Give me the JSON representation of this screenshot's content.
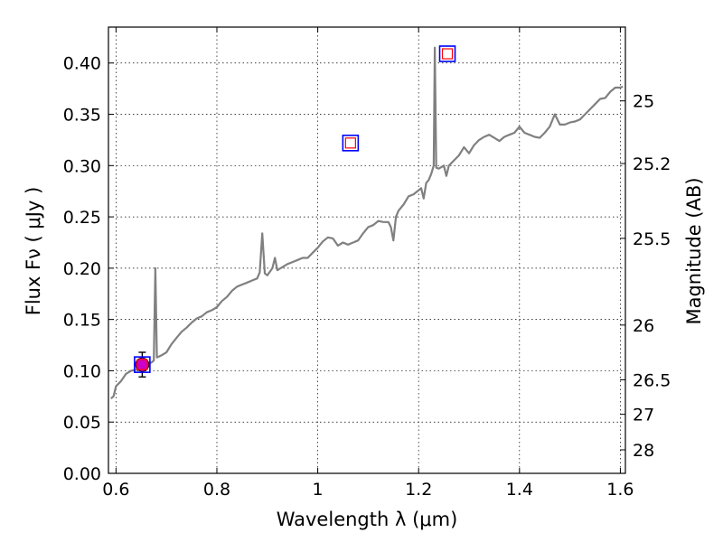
{
  "chart_data": {
    "type": "line",
    "title": "",
    "xlabel": "Wavelength  λ (μm)",
    "ylabel_left": "Flux  Fν  ( μJy )",
    "ylabel_right": "Magnitude (AB)",
    "xlim": [
      0.585,
      1.61
    ],
    "ylim": [
      0.0,
      0.435
    ],
    "grid": true,
    "x_ticks": [
      {
        "value": 0.6,
        "label": "0.6"
      },
      {
        "value": 0.8,
        "label": "0.8"
      },
      {
        "value": 1.0,
        "label": "1"
      },
      {
        "value": 1.2,
        "label": "1.2"
      },
      {
        "value": 1.4,
        "label": "1.4"
      },
      {
        "value": 1.6,
        "label": "1.6"
      }
    ],
    "y_ticks": [
      {
        "value": 0.0,
        "label": "0.00"
      },
      {
        "value": 0.05,
        "label": "0.05"
      },
      {
        "value": 0.1,
        "label": "0.10"
      },
      {
        "value": 0.15,
        "label": "0.15"
      },
      {
        "value": 0.2,
        "label": "0.20"
      },
      {
        "value": 0.25,
        "label": "0.25"
      },
      {
        "value": 0.3,
        "label": "0.30"
      },
      {
        "value": 0.35,
        "label": "0.35"
      },
      {
        "value": 0.4,
        "label": "0.40"
      }
    ],
    "right_ticks": [
      {
        "mag": 25,
        "label": "25"
      },
      {
        "mag": 25.2,
        "label": "25.2"
      },
      {
        "mag": 25.5,
        "label": "25.5"
      },
      {
        "mag": 26,
        "label": "26"
      },
      {
        "mag": 26.5,
        "label": "26.5"
      },
      {
        "mag": 27,
        "label": "27"
      },
      {
        "mag": 28,
        "label": "28"
      }
    ],
    "series": [
      {
        "name": "model spectrum",
        "color": "#808080",
        "points": [
          [
            0.59,
            0.073
          ],
          [
            0.595,
            0.075
          ],
          [
            0.6,
            0.085
          ],
          [
            0.61,
            0.09
          ],
          [
            0.62,
            0.097
          ],
          [
            0.63,
            0.1
          ],
          [
            0.64,
            0.101
          ],
          [
            0.65,
            0.104
          ],
          [
            0.66,
            0.107
          ],
          [
            0.67,
            0.108
          ],
          [
            0.675,
            0.11
          ],
          [
            0.678,
            0.2
          ],
          [
            0.681,
            0.113
          ],
          [
            0.69,
            0.115
          ],
          [
            0.7,
            0.118
          ],
          [
            0.71,
            0.126
          ],
          [
            0.72,
            0.132
          ],
          [
            0.73,
            0.138
          ],
          [
            0.74,
            0.142
          ],
          [
            0.75,
            0.147
          ],
          [
            0.76,
            0.151
          ],
          [
            0.77,
            0.153
          ],
          [
            0.78,
            0.157
          ],
          [
            0.79,
            0.159
          ],
          [
            0.8,
            0.162
          ],
          [
            0.81,
            0.168
          ],
          [
            0.82,
            0.172
          ],
          [
            0.83,
            0.178
          ],
          [
            0.84,
            0.182
          ],
          [
            0.85,
            0.184
          ],
          [
            0.86,
            0.186
          ],
          [
            0.87,
            0.188
          ],
          [
            0.88,
            0.19
          ],
          [
            0.885,
            0.196
          ],
          [
            0.89,
            0.234
          ],
          [
            0.895,
            0.195
          ],
          [
            0.9,
            0.193
          ],
          [
            0.91,
            0.2
          ],
          [
            0.915,
            0.21
          ],
          [
            0.92,
            0.198
          ],
          [
            0.93,
            0.201
          ],
          [
            0.94,
            0.204
          ],
          [
            0.95,
            0.206
          ],
          [
            0.96,
            0.208
          ],
          [
            0.97,
            0.21
          ],
          [
            0.98,
            0.21
          ],
          [
            0.99,
            0.215
          ],
          [
            1.0,
            0.22
          ],
          [
            1.01,
            0.226
          ],
          [
            1.02,
            0.23
          ],
          [
            1.03,
            0.229
          ],
          [
            1.04,
            0.222
          ],
          [
            1.05,
            0.225
          ],
          [
            1.06,
            0.223
          ],
          [
            1.07,
            0.225
          ],
          [
            1.08,
            0.227
          ],
          [
            1.09,
            0.234
          ],
          [
            1.1,
            0.24
          ],
          [
            1.11,
            0.242
          ],
          [
            1.12,
            0.246
          ],
          [
            1.13,
            0.245
          ],
          [
            1.14,
            0.245
          ],
          [
            1.145,
            0.24
          ],
          [
            1.15,
            0.227
          ],
          [
            1.155,
            0.25
          ],
          [
            1.16,
            0.256
          ],
          [
            1.17,
            0.262
          ],
          [
            1.18,
            0.27
          ],
          [
            1.19,
            0.272
          ],
          [
            1.2,
            0.276
          ],
          [
            1.205,
            0.278
          ],
          [
            1.21,
            0.268
          ],
          [
            1.215,
            0.283
          ],
          [
            1.22,
            0.286
          ],
          [
            1.225,
            0.292
          ],
          [
            1.23,
            0.3
          ],
          [
            1.232,
            0.415
          ],
          [
            1.235,
            0.298
          ],
          [
            1.24,
            0.297
          ],
          [
            1.25,
            0.3
          ],
          [
            1.255,
            0.29
          ],
          [
            1.26,
            0.3
          ],
          [
            1.27,
            0.305
          ],
          [
            1.28,
            0.31
          ],
          [
            1.29,
            0.318
          ],
          [
            1.3,
            0.312
          ],
          [
            1.31,
            0.32
          ],
          [
            1.32,
            0.325
          ],
          [
            1.33,
            0.328
          ],
          [
            1.34,
            0.33
          ],
          [
            1.35,
            0.327
          ],
          [
            1.36,
            0.324
          ],
          [
            1.37,
            0.328
          ],
          [
            1.38,
            0.33
          ],
          [
            1.39,
            0.332
          ],
          [
            1.4,
            0.338
          ],
          [
            1.41,
            0.332
          ],
          [
            1.42,
            0.33
          ],
          [
            1.43,
            0.328
          ],
          [
            1.44,
            0.327
          ],
          [
            1.45,
            0.332
          ],
          [
            1.46,
            0.338
          ],
          [
            1.47,
            0.35
          ],
          [
            1.48,
            0.34
          ],
          [
            1.49,
            0.34
          ],
          [
            1.5,
            0.342
          ],
          [
            1.51,
            0.343
          ],
          [
            1.52,
            0.345
          ],
          [
            1.53,
            0.35
          ],
          [
            1.54,
            0.355
          ],
          [
            1.55,
            0.36
          ],
          [
            1.56,
            0.365
          ],
          [
            1.57,
            0.366
          ],
          [
            1.58,
            0.372
          ],
          [
            1.59,
            0.376
          ],
          [
            1.6,
            0.376
          ],
          [
            1.605,
            0.377
          ]
        ]
      }
    ],
    "markers": [
      {
        "name": "photometry-observed-r",
        "x": 0.652,
        "y": 0.106,
        "shape": "circle",
        "fill": "#cc00cc",
        "err_low": 0.094,
        "err_high": 0.118
      },
      {
        "name": "model-photometry-r",
        "x": 0.652,
        "y": 0.106,
        "shape": "square",
        "stroke": "#0000ff"
      },
      {
        "name": "model-photometry-j",
        "x": 1.065,
        "y": 0.322,
        "shape": "square",
        "stroke": "#0000ff"
      },
      {
        "name": "model-photometry-h",
        "x": 1.257,
        "y": 0.409,
        "shape": "square",
        "stroke": "#0000ff"
      }
    ],
    "colors": {
      "line": "#808080",
      "square_outer": "#0000ff",
      "square_inner": "#ff0000",
      "point": "#cc00cc"
    }
  }
}
